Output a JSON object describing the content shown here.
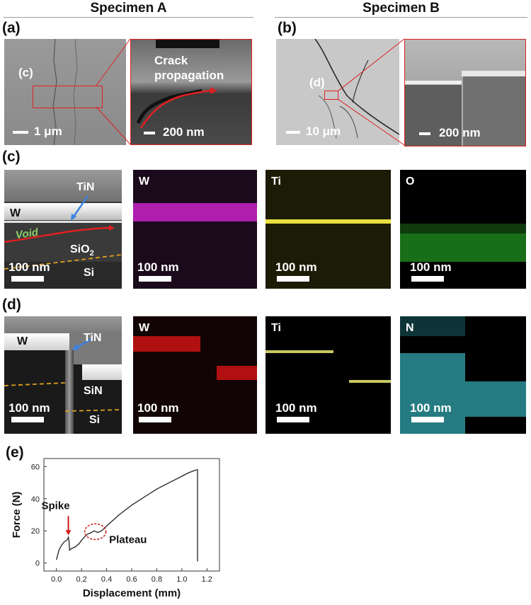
{
  "headers": {
    "specimen_a": "Specimen A",
    "specimen_b": "Specimen B"
  },
  "panel_labels": {
    "a": "(a)",
    "b": "(b)",
    "c": "(c)",
    "d": "(d)",
    "e": "(e)"
  },
  "panel_a": {
    "marker": "(c)",
    "scale_left": "1 μm",
    "zoom_text_1": "Crack",
    "zoom_text_2": "propagation",
    "scale_zoom": "200 nm"
  },
  "panel_b": {
    "marker": "(d)",
    "scale_left": "10 μm",
    "scale_zoom": "200 nm"
  },
  "row_c": {
    "tem": {
      "tin": "TiN",
      "w": "W",
      "void": "Void",
      "sio2": "SiO",
      "sio2_sub": "2",
      "si": "Si",
      "scale": "100 nm"
    },
    "maps": [
      {
        "element": "W",
        "scale": "100 nm",
        "color": "#e000e0"
      },
      {
        "element": "Ti",
        "scale": "100 nm",
        "color": "#e8e000"
      },
      {
        "element": "O",
        "scale": "100 nm",
        "color": "#20d020"
      }
    ]
  },
  "row_d": {
    "tem": {
      "tin": "TiN",
      "w": "W",
      "sin": "SiN",
      "si": "Si",
      "scale": "100 nm"
    },
    "maps": [
      {
        "element": "W",
        "scale": "100 nm",
        "color": "#e01010"
      },
      {
        "element": "Ti",
        "scale": "100 nm",
        "color": "#e0e060"
      },
      {
        "element": "N",
        "scale": "100 nm",
        "color": "#30c0c8"
      }
    ]
  },
  "chart_data": {
    "type": "line",
    "xlabel": "Displacement (mm)",
    "ylabel": "Force (N)",
    "xlim": [
      -0.1,
      1.3
    ],
    "ylim": [
      -5,
      65
    ],
    "xticks": [
      "0.0",
      "0.2",
      "0.4",
      "0.6",
      "0.8",
      "1.0",
      "1.2"
    ],
    "yticks": [
      "0",
      "20",
      "40",
      "60"
    ],
    "annotations": {
      "spike": "Spike",
      "plateau": "Plateau"
    },
    "series": [
      {
        "x": [
          0.0,
          0.01,
          0.02,
          0.04,
          0.06,
          0.08,
          0.09,
          0.095,
          0.1,
          0.105,
          0.12,
          0.15,
          0.18,
          0.2,
          0.22,
          0.25,
          0.28,
          0.3,
          0.33,
          0.36,
          0.4,
          0.5,
          0.6,
          0.7,
          0.8,
          0.9,
          1.0,
          1.05,
          1.1,
          1.12,
          1.125,
          1.125
        ],
        "y": [
          2,
          5,
          8,
          11,
          13,
          14,
          15,
          16,
          14,
          8,
          9,
          10,
          12,
          14,
          16,
          18,
          19,
          20,
          19,
          20,
          23,
          30,
          36,
          41,
          46,
          50,
          54,
          56,
          57.5,
          58,
          58,
          1
        ]
      }
    ]
  }
}
